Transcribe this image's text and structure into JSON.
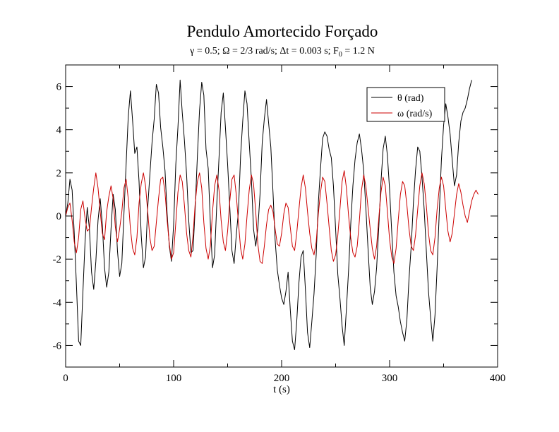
{
  "chart_data": {
    "type": "line",
    "title": "Pendulo Amortecido Forçado",
    "subtitle": {
      "gamma_sym": "γ",
      "gamma_val": " = 0.5; ",
      "omega_sym": "Ω",
      "omega_val": " = 2/3 rad/s; ",
      "dt_sym": "Δ",
      "dt_val": "t = 0.003 s; F",
      "f_sub": "0",
      "f_val": " = 1.2 N"
    },
    "xlabel": "t (s)",
    "ylabel": "",
    "xlim": [
      0,
      400
    ],
    "ylim": [
      -7,
      7
    ],
    "x_ticks": [
      "0",
      "100",
      "200",
      "300",
      "400"
    ],
    "y_ticks": [
      "-6",
      "-4",
      "-2",
      "0",
      "2",
      "4",
      "6"
    ],
    "legend_position": "top-right",
    "grid": false,
    "series": [
      {
        "name": "θ (rad)",
        "color": "#000000",
        "t_step": 2,
        "values": [
          0.0,
          0.6,
          1.7,
          1.2,
          -0.8,
          -3.2,
          -5.8,
          -6.0,
          -3.5,
          -1.2,
          0.4,
          -0.6,
          -2.6,
          -3.4,
          -2.1,
          -0.2,
          0.8,
          -0.4,
          -2.4,
          -3.3,
          -2.6,
          -0.6,
          1.0,
          0.3,
          -1.6,
          -2.8,
          -2.2,
          0.1,
          2.4,
          4.6,
          5.8,
          4.4,
          2.9,
          3.2,
          1.6,
          -0.9,
          -2.4,
          -1.9,
          0.4,
          1.9,
          3.4,
          4.5,
          6.1,
          5.7,
          4.1,
          3.2,
          2.1,
          0.1,
          -1.4,
          -2.1,
          -0.4,
          2.4,
          4.1,
          6.3,
          4.8,
          3.5,
          1.9,
          -0.2,
          -1.7,
          -1.6,
          0.4,
          2.8,
          4.9,
          6.2,
          5.6,
          3.1,
          2.2,
          -0.3,
          -2.4,
          -1.8,
          0.6,
          2.7,
          4.8,
          5.7,
          4.1,
          2.4,
          0.4,
          -1.6,
          -2.2,
          -0.9,
          0.2,
          2.8,
          4.4,
          5.8,
          5.2,
          3.4,
          1.7,
          -0.6,
          -1.4,
          -0.6,
          1.0,
          3.4,
          4.5,
          5.4,
          4.3,
          3.2,
          1.1,
          -1.1,
          -2.5,
          -3.2,
          -3.8,
          -4.1,
          -3.5,
          -2.6,
          -4.3,
          -5.8,
          -6.2,
          -4.9,
          -3.1,
          -1.9,
          -1.6,
          -3.4,
          -5.4,
          -6.1,
          -4.9,
          -3.6,
          -1.8,
          0.6,
          2.2,
          3.6,
          3.9,
          3.7,
          3.1,
          2.7,
          1.4,
          -0.6,
          -2.7,
          -3.8,
          -5.1,
          -6.0,
          -4.3,
          -2.5,
          -0.4,
          1.4,
          2.6,
          3.4,
          3.8,
          3.1,
          2.1,
          0.4,
          -1.5,
          -3.3,
          -4.1,
          -3.5,
          -2.4,
          -0.5,
          1.6,
          3.1,
          3.7,
          2.8,
          1.2,
          -0.8,
          -2.6,
          -3.7,
          -4.2,
          -4.9,
          -5.4,
          -5.8,
          -4.8,
          -2.9,
          -1.4,
          0.6,
          2.1,
          3.2,
          3.0,
          1.8,
          0.3,
          -1.6,
          -3.5,
          -4.7,
          -5.8,
          -4.6,
          -2.4,
          0.2,
          2.6,
          4.2,
          5.2,
          4.6,
          3.8,
          2.6,
          1.4,
          1.9,
          3.4,
          4.4,
          4.8,
          5.0,
          5.4,
          5.9,
          6.3
        ]
      },
      {
        "name": "ω (rad/s)",
        "color": "#cc0000",
        "t_step": 2,
        "values": [
          0.0,
          0.4,
          0.6,
          -0.2,
          -1.2,
          -1.7,
          -1.0,
          0.3,
          0.7,
          -0.1,
          -0.7,
          -0.6,
          0.4,
          1.3,
          2.0,
          1.3,
          0.2,
          -0.8,
          -1.1,
          0.2,
          0.9,
          1.4,
          0.8,
          -0.5,
          -1.2,
          -0.6,
          0.2,
          1.3,
          1.7,
          0.8,
          -0.6,
          -1.5,
          -1.8,
          -1.0,
          0.6,
          1.5,
          2.0,
          1.4,
          0.2,
          -1.0,
          -1.6,
          -1.4,
          -0.3,
          0.8,
          1.7,
          1.8,
          1.1,
          -0.2,
          -1.3,
          -2.0,
          -1.7,
          -0.3,
          1.1,
          1.9,
          1.6,
          0.5,
          -0.8,
          -1.6,
          -1.9,
          -0.9,
          0.6,
          1.6,
          2.0,
          1.3,
          -0.3,
          -1.5,
          -2.0,
          -1.4,
          0.2,
          1.4,
          1.9,
          1.2,
          -0.2,
          -1.2,
          -1.6,
          -0.7,
          0.7,
          1.7,
          1.9,
          1.0,
          -0.3,
          -1.5,
          -2.0,
          -1.3,
          0.0,
          1.2,
          1.9,
          1.5,
          0.2,
          -1.3,
          -2.1,
          -2.2,
          -1.4,
          -0.4,
          0.3,
          0.5,
          0.2,
          -0.6,
          -1.3,
          -1.4,
          -0.8,
          0.1,
          0.6,
          0.4,
          -0.5,
          -1.4,
          -1.6,
          -0.8,
          0.3,
          1.3,
          1.9,
          1.3,
          0.2,
          -0.8,
          -1.5,
          -1.8,
          -1.2,
          0.1,
          1.1,
          1.8,
          1.6,
          0.6,
          -0.5,
          -1.6,
          -2.1,
          -1.8,
          -0.9,
          0.3,
          1.6,
          2.1,
          1.3,
          0.0,
          -1.0,
          -1.7,
          -1.9,
          -1.4,
          -0.2,
          1.2,
          1.9,
          1.4,
          0.4,
          -0.6,
          -1.5,
          -2.0,
          -1.4,
          -0.1,
          1.1,
          1.8,
          1.4,
          0.2,
          -1.1,
          -1.9,
          -2.2,
          -1.5,
          -0.2,
          1.0,
          1.6,
          1.4,
          0.5,
          -0.6,
          -1.4,
          -1.6,
          -0.9,
          0.3,
          1.4,
          2.0,
          1.5,
          0.5,
          -0.8,
          -1.6,
          -1.8,
          -1.0,
          0.3,
          1.3,
          1.8,
          1.4,
          0.3,
          -0.7,
          -1.2,
          -0.8,
          0.1,
          1.0,
          1.5,
          1.1,
          0.5,
          0.0,
          -0.3,
          0.2,
          0.7,
          1.0,
          1.2,
          1.0
        ]
      }
    ]
  }
}
